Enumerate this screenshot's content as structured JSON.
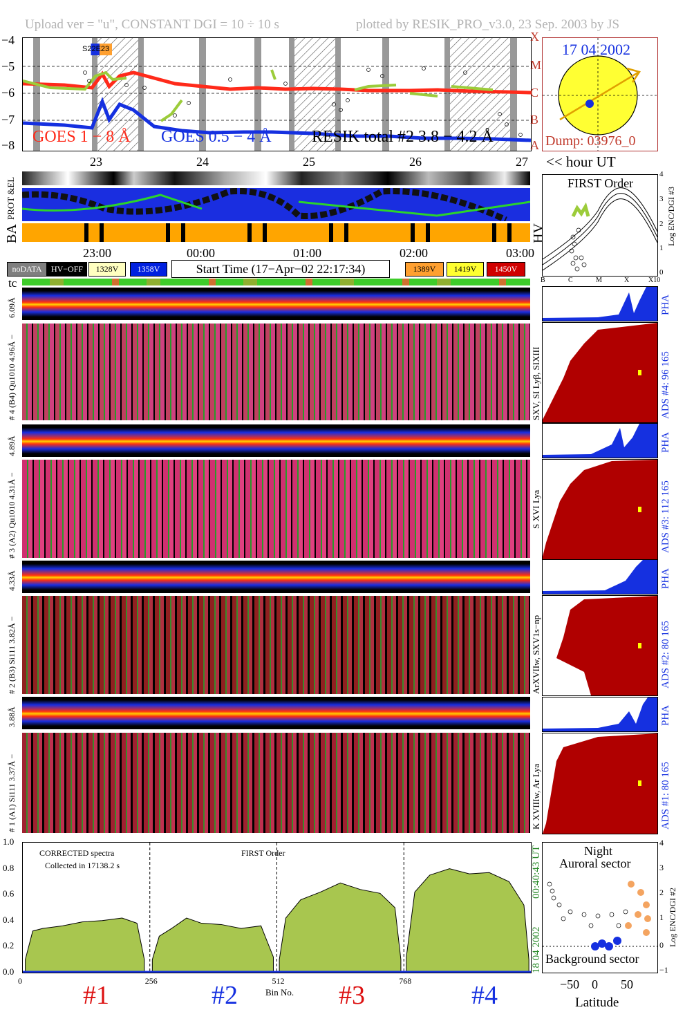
{
  "header": {
    "left": "Upload ver = \"u\", CONSTANT  DGI =  10 ÷  10 s",
    "right": "plotted by RESIK_PRO_v3.0, 23 Sep. 2003 by JS"
  },
  "goes": {
    "yticks": [
      "−4",
      "−5",
      "−6",
      "−7",
      "−8"
    ],
    "class_labels": [
      "X",
      "M",
      "C",
      "B",
      "A"
    ],
    "region_label": "S22E23",
    "label_long": "GOES 1 − 8 Å",
    "label_short": "GOES 0.5 − 4 Å",
    "label_resik": "RESIK total #2  3.8 − 4.2 Å",
    "day_ticks": [
      "23",
      "24",
      "25",
      "26",
      "27"
    ],
    "hour_label": "<< hour UT",
    "colors": {
      "long": "#ff2a1a",
      "short": "#1530e0",
      "resik": "#9ccc3a"
    }
  },
  "sun": {
    "date": "17 04 2002",
    "dump": "Dump: 03976_0",
    "colors": {
      "disk": "#ffff33",
      "arrow": "#e0a000",
      "dot": "#1530e0"
    }
  },
  "orbit": {
    "prot_el": "PROT &EL",
    "ba": "BA",
    "hv": "HV",
    "time_ticks": [
      "23:00",
      "00:00",
      "01:00",
      "02:00",
      "03:00"
    ]
  },
  "legend": {
    "items": [
      "noDATA",
      "HV−OFF",
      "1328V",
      "1358V",
      "1389V",
      "1419V",
      "1450V"
    ],
    "colors": [
      "#7f7f7f",
      "#000000",
      "#ffffc0",
      "#0020e0",
      "#ffa030",
      "#ffff30",
      "#d00000"
    ],
    "start_time": "Start Time (17−Apr−02 22:17:34)",
    "tc": "tc"
  },
  "first_order": {
    "title": "FIRST Order",
    "ylabel": "Log ENC/DGI #3",
    "yticks": [
      "4",
      "3",
      "2",
      "1",
      "0"
    ],
    "xticks": [
      "B",
      "C",
      "M",
      "X",
      "X10"
    ]
  },
  "channels": [
    {
      "pha_label": "6.09Å",
      "spec_label": "# 4 (B4)  Qu1010  4.96Å −",
      "side_line": "SXV, SI Lyβ, SIXIII",
      "ads": "ADS #4:   96 165",
      "pha": "PHA"
    },
    {
      "pha_label": "4.89Å",
      "spec_label": "# 3 (A2)  Qu1010  4.31Å −",
      "side_line": "S XVI Lya",
      "ads": "ADS #3:   112 165",
      "pha": "PHA"
    },
    {
      "pha_label": "4.33Å",
      "spec_label": "# 2 (B3)  Si111   3.82Å −",
      "side_line": "ArXVIIw, SXV1s−np",
      "ads": "ADS #2:   80 165",
      "pha": "PHA"
    },
    {
      "pha_label": "3.88Å",
      "spec_label": "# 1 (A1)  Si111   3.37Å −",
      "side_line": "K XVIIIw, Ar Lya",
      "ads": "ADS #1:   80 165",
      "pha": "PHA"
    }
  ],
  "chart_data": {
    "type": "area",
    "title": "FIRST Order",
    "notes": [
      "CORRECTED spectra",
      "Collected in 17138.2 s"
    ],
    "xlabel": "Bin No.",
    "xticks": [
      0,
      256,
      512,
      768
    ],
    "yticks": [
      "0.0",
      "0.2",
      "0.4",
      "0.6",
      "0.8",
      "1.0"
    ],
    "ylim": [
      0,
      1.0
    ],
    "xlim": [
      0,
      1024
    ],
    "channel_labels": [
      "#1",
      "#2",
      "#3",
      "#4"
    ],
    "channel_colors": [
      "#dd1111",
      "#1530e0",
      "#dd1111",
      "#1530e0"
    ],
    "fill_color": "#a8c64f",
    "series": [
      {
        "x": [
          5,
          20,
          40,
          80,
          120,
          160,
          200,
          230,
          245
        ],
        "values": [
          0.1,
          0.32,
          0.34,
          0.36,
          0.39,
          0.4,
          0.42,
          0.38,
          0.1
        ]
      },
      {
        "x": [
          261,
          275,
          300,
          330,
          360,
          400,
          440,
          480,
          505
        ],
        "values": [
          0.1,
          0.28,
          0.34,
          0.42,
          0.38,
          0.37,
          0.34,
          0.36,
          0.12
        ]
      },
      {
        "x": [
          517,
          530,
          560,
          600,
          640,
          680,
          720,
          750,
          762
        ],
        "values": [
          0.1,
          0.42,
          0.56,
          0.62,
          0.69,
          0.64,
          0.61,
          0.5,
          0.1
        ]
      },
      {
        "x": [
          773,
          790,
          820,
          860,
          900,
          940,
          980,
          1010,
          1020
        ],
        "values": [
          0.12,
          0.62,
          0.75,
          0.8,
          0.76,
          0.77,
          0.7,
          0.52,
          0.1
        ]
      }
    ],
    "side_time": "00:40:43 UT",
    "side_date": "18 04 2002"
  },
  "orbit_plot": {
    "title1": "Night",
    "title2": "Auroral sector",
    "bottom": "Background sector",
    "xlabel": "Latitude",
    "xticks": [
      "−50",
      "0",
      "50"
    ],
    "ylabel": "Log ENC/DGI #2",
    "yticks": [
      "4",
      "3",
      "2",
      "1",
      "0",
      "−1"
    ]
  },
  "bottom_labels": [
    "#1",
    "#2",
    "#3",
    "#4"
  ]
}
